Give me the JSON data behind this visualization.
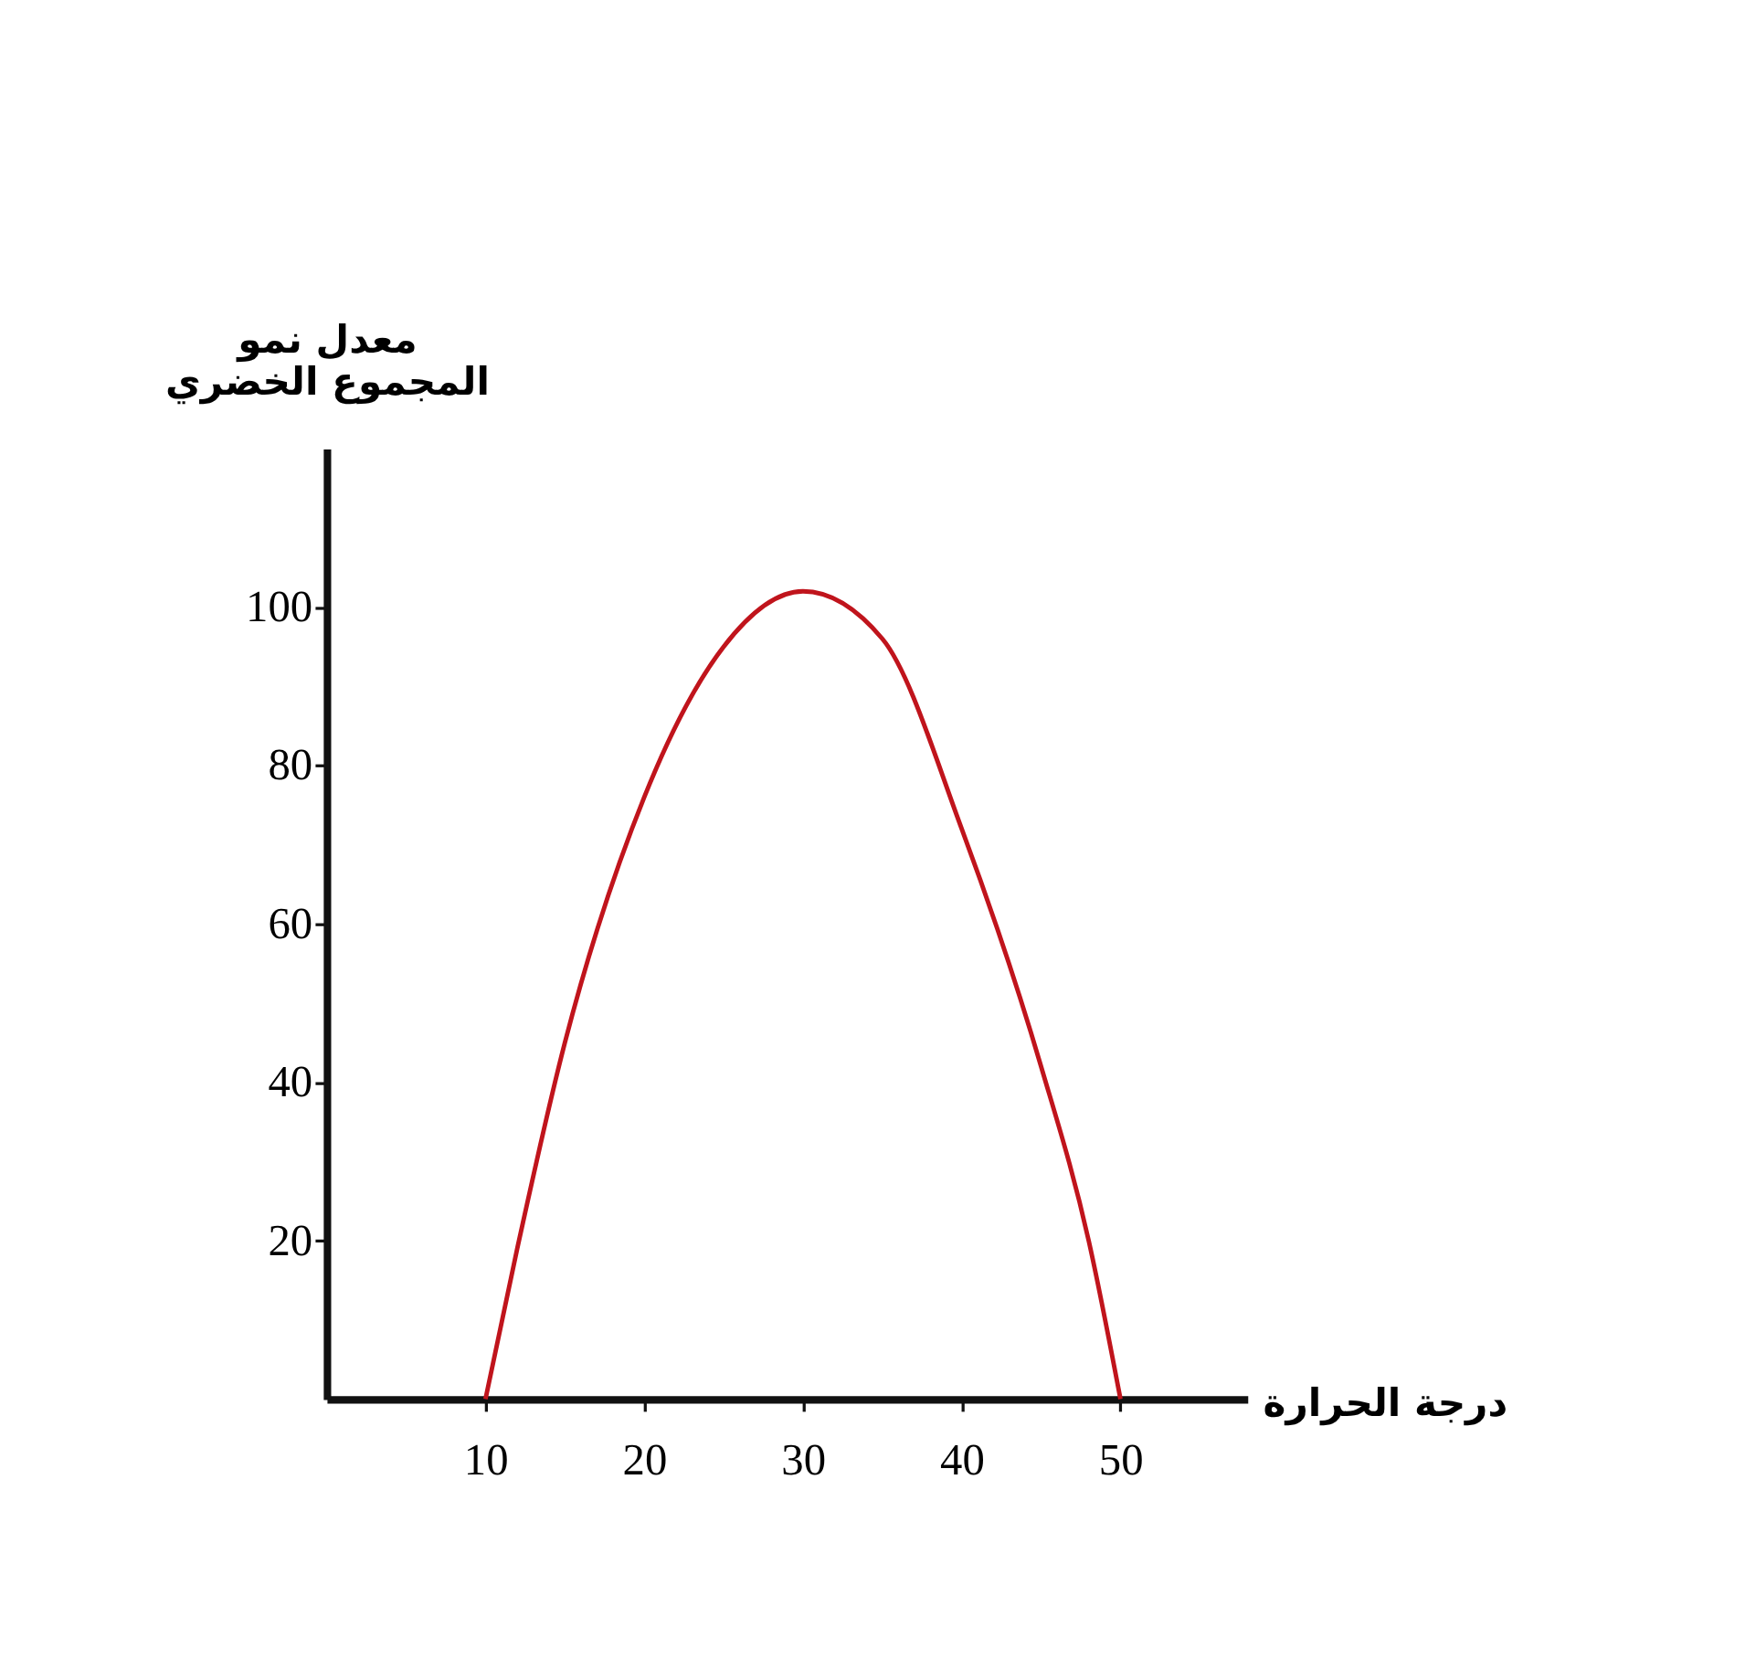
{
  "chart_data": {
    "type": "line",
    "xlabel": "درجة الحرارة",
    "ylabel": "معدل نمو المجموع الخضري",
    "x": [
      10,
      12,
      15,
      20,
      25,
      30,
      35,
      40,
      45,
      48,
      50
    ],
    "series": [
      {
        "color": "#c0141c",
        "values": [
          0,
          19,
          45,
          76,
          95,
          102,
          96,
          72,
          42,
          20,
          0
        ]
      }
    ],
    "xlim": [
      0,
      58
    ],
    "ylim": [
      0,
      120
    ],
    "xticks": [
      10,
      20,
      30,
      40,
      50
    ],
    "yticks": [
      20,
      40,
      60,
      80,
      100
    ],
    "grid": false,
    "marker": "none",
    "line_style": "solid"
  }
}
